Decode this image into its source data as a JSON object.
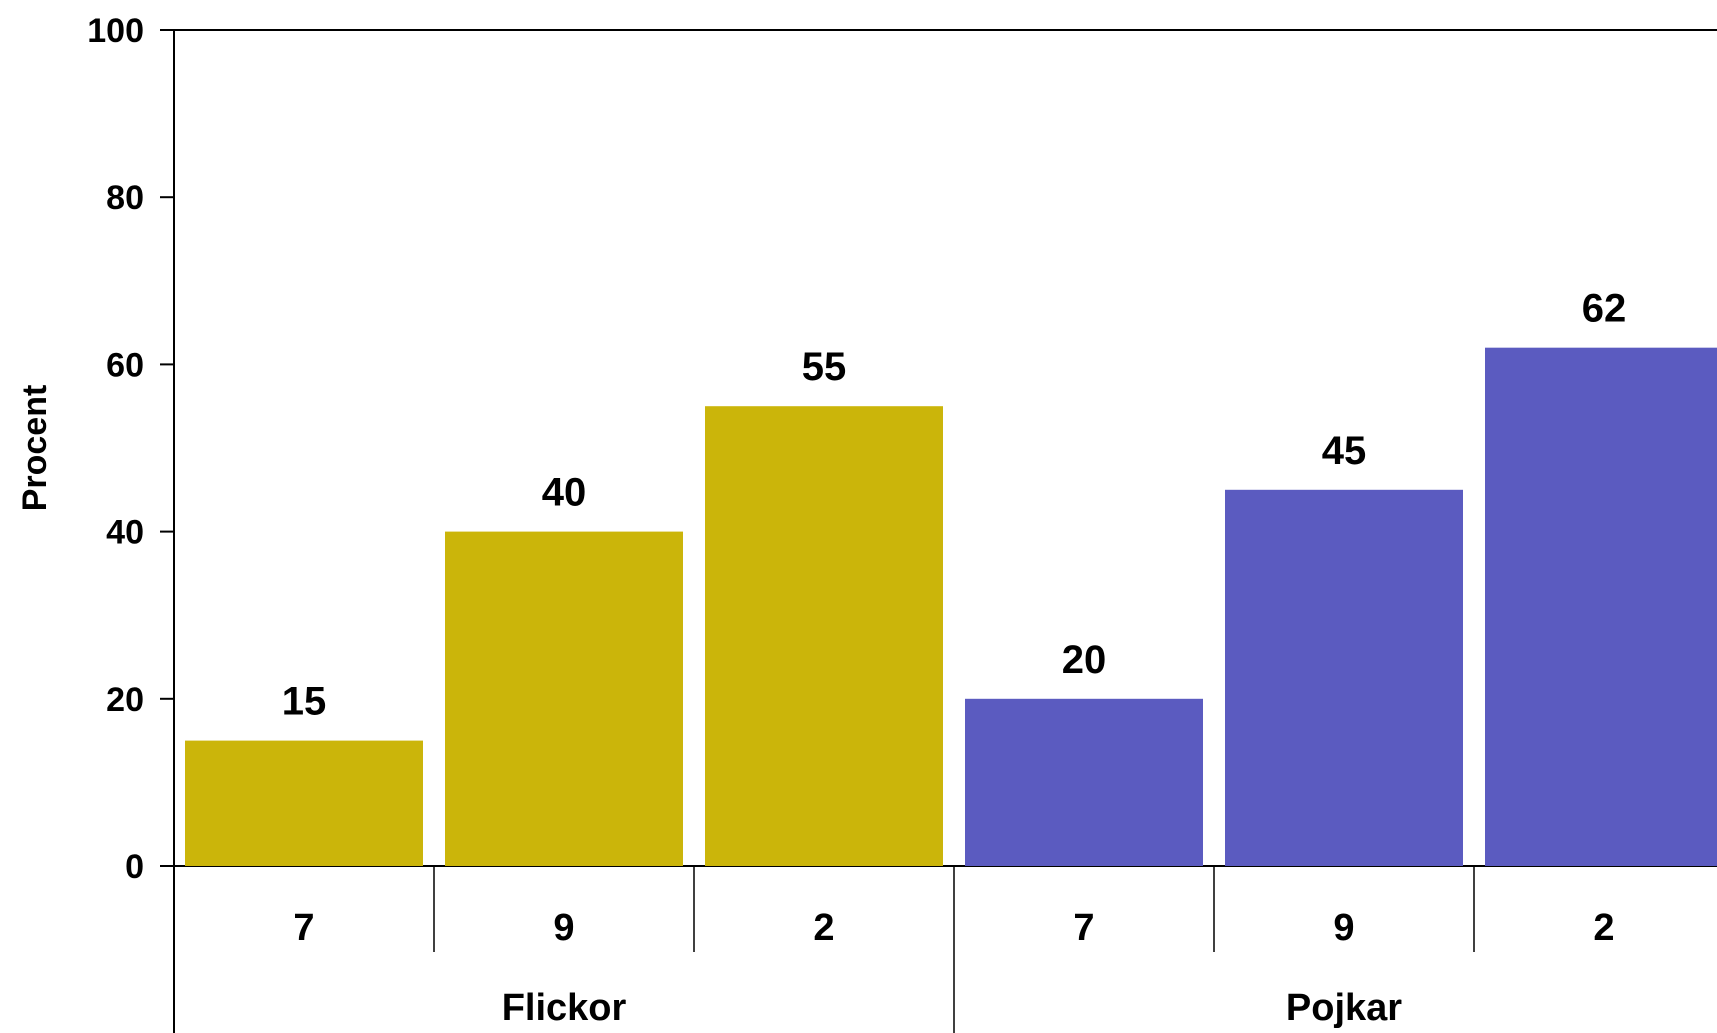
{
  "chart_data": {
    "type": "bar",
    "title": "",
    "ylabel": "Procent",
    "xlabel": "",
    "ylim": [
      0,
      100
    ],
    "yticks": [
      0,
      20,
      40,
      60,
      80,
      100
    ],
    "grid": false,
    "legend": "none",
    "groups": [
      {
        "name": "Flickor",
        "color": "#CBB50A",
        "categories": [
          "7",
          "9",
          "2"
        ],
        "values": [
          15,
          40,
          55
        ]
      },
      {
        "name": "Pojkar",
        "color": "#5B5BC0",
        "categories": [
          "7",
          "9",
          "2"
        ],
        "values": [
          20,
          45,
          62
        ]
      }
    ]
  }
}
